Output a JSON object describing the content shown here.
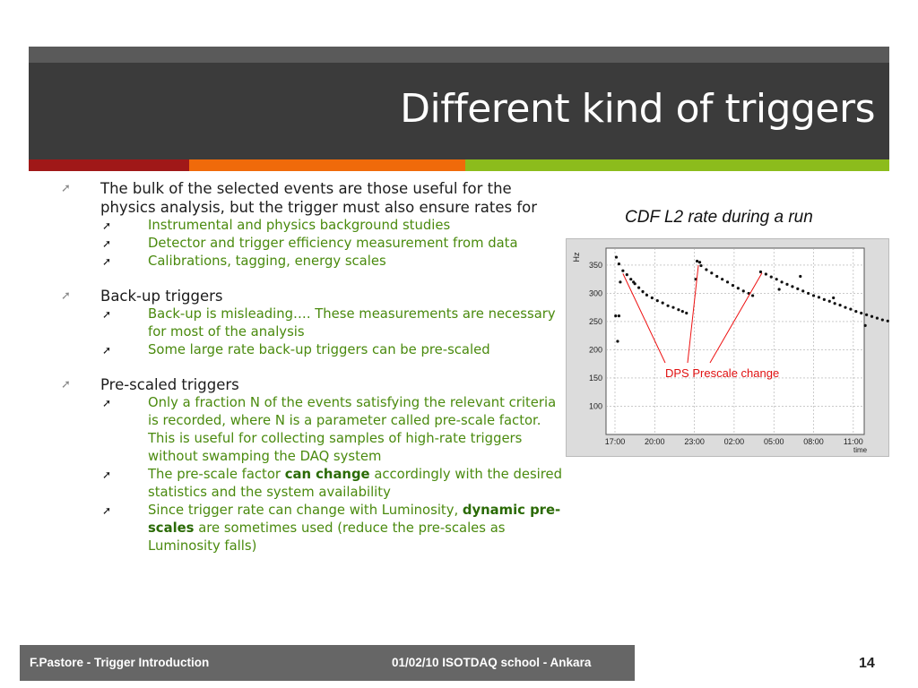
{
  "slide": {
    "title": "Different kind of triggers",
    "colors": {
      "title_bg": "#3b3b3b",
      "stripe_red": "#a01818",
      "stripe_orange": "#f06a0a",
      "stripe_green": "#8cbc1c",
      "sub_text": "#4a8a0e"
    },
    "bullets": [
      {
        "text": "The bulk of the selected events are those useful for the physics analysis, but the trigger must also ensure rates for",
        "subs": [
          "Instrumental and physics background studies",
          "Detector and trigger efficiency measurement from data",
          "Calibrations, tagging, energy scales"
        ]
      },
      {
        "text": "Back-up triggers",
        "subs": [
          "Back-up is misleading…. These measurements  are necessary for most of the analysis",
          "Some large rate back-up triggers can be pre-scaled"
        ]
      },
      {
        "text": "Pre-scaled triggers",
        "subs": [
          "Only a fraction N  of the events satisfying the relevant criteria is recorded, where N is a parameter called pre-scale factor. This is useful for collecting samples of high-rate triggers without swamping the DAQ system"
        ],
        "sub_prescale": {
          "pre": "The pre-scale factor ",
          "bold": "can change",
          "post": " accordingly with the desired statistics and the system availability"
        },
        "sub_dynamic": {
          "pre": "Since trigger rate can change with Luminosity, ",
          "bold": "dynamic pre-scales",
          "post": " are sometimes used (reduce the pre-scales as Luminosity falls)"
        }
      }
    ],
    "caption": "CDF L2 rate during a run",
    "footer": {
      "left": "F.Pastore - Trigger Introduction",
      "center": "01/02/10 ISOTDAQ school - Ankara",
      "page": "14"
    }
  },
  "chart_data": {
    "type": "scatter",
    "title": "",
    "ylabel": "Hz",
    "xlabel": "time",
    "ylim": [
      50,
      380
    ],
    "x_ticks": [
      "17:00",
      "20:00",
      "23:00",
      "02:00",
      "05:00",
      "08:00",
      "11:00"
    ],
    "y_ticks": [
      100,
      150,
      200,
      250,
      300,
      350
    ],
    "grid": true,
    "annotation": "DPS Prescale change",
    "series": [
      {
        "points": [
          [
            0.1,
            364
          ],
          [
            0.3,
            352
          ],
          [
            0.6,
            340
          ],
          [
            0.9,
            333
          ],
          [
            1.2,
            325
          ],
          [
            1.5,
            317
          ],
          [
            1.8,
            310
          ],
          [
            2.1,
            303
          ],
          [
            2.4,
            297
          ],
          [
            2.8,
            292
          ],
          [
            3.2,
            287
          ],
          [
            3.6,
            283
          ],
          [
            4.0,
            278
          ],
          [
            4.4,
            275
          ],
          [
            4.8,
            271
          ],
          [
            5.1,
            268
          ],
          [
            5.4,
            265
          ],
          [
            0.4,
            320
          ],
          [
            1.4,
            320
          ],
          [
            0.3,
            260
          ],
          [
            0.2,
            215
          ],
          [
            0.05,
            260
          ]
        ]
      },
      {
        "points": [
          [
            6.2,
            357
          ],
          [
            6.5,
            349
          ],
          [
            6.9,
            342
          ],
          [
            7.3,
            336
          ],
          [
            7.7,
            330
          ],
          [
            8.1,
            325
          ],
          [
            8.5,
            320
          ],
          [
            8.9,
            314
          ],
          [
            9.3,
            309
          ],
          [
            9.7,
            304
          ],
          [
            10.1,
            300
          ],
          [
            10.4,
            296
          ],
          [
            6.1,
            325
          ],
          [
            6.4,
            355
          ]
        ]
      },
      {
        "points": [
          [
            11.0,
            338
          ],
          [
            11.4,
            334
          ],
          [
            11.8,
            329
          ],
          [
            12.2,
            325
          ],
          [
            12.6,
            320
          ],
          [
            13.0,
            316
          ],
          [
            13.4,
            312
          ],
          [
            13.8,
            308
          ],
          [
            14.2,
            304
          ],
          [
            14.6,
            300
          ],
          [
            15.0,
            296
          ],
          [
            15.4,
            293
          ],
          [
            15.8,
            289
          ],
          [
            16.2,
            286
          ],
          [
            16.6,
            282
          ],
          [
            17.0,
            279
          ],
          [
            17.4,
            275
          ],
          [
            17.8,
            272
          ],
          [
            18.2,
            268
          ],
          [
            18.6,
            265
          ],
          [
            19.0,
            262
          ],
          [
            19.4,
            259
          ],
          [
            19.8,
            256
          ],
          [
            20.2,
            253
          ],
          [
            20.6,
            251
          ],
          [
            21.0,
            249
          ],
          [
            21.4,
            247
          ],
          [
            12.4,
            307
          ],
          [
            14.0,
            330
          ],
          [
            16.5,
            292
          ],
          [
            18.9,
            243
          ]
        ]
      }
    ]
  }
}
